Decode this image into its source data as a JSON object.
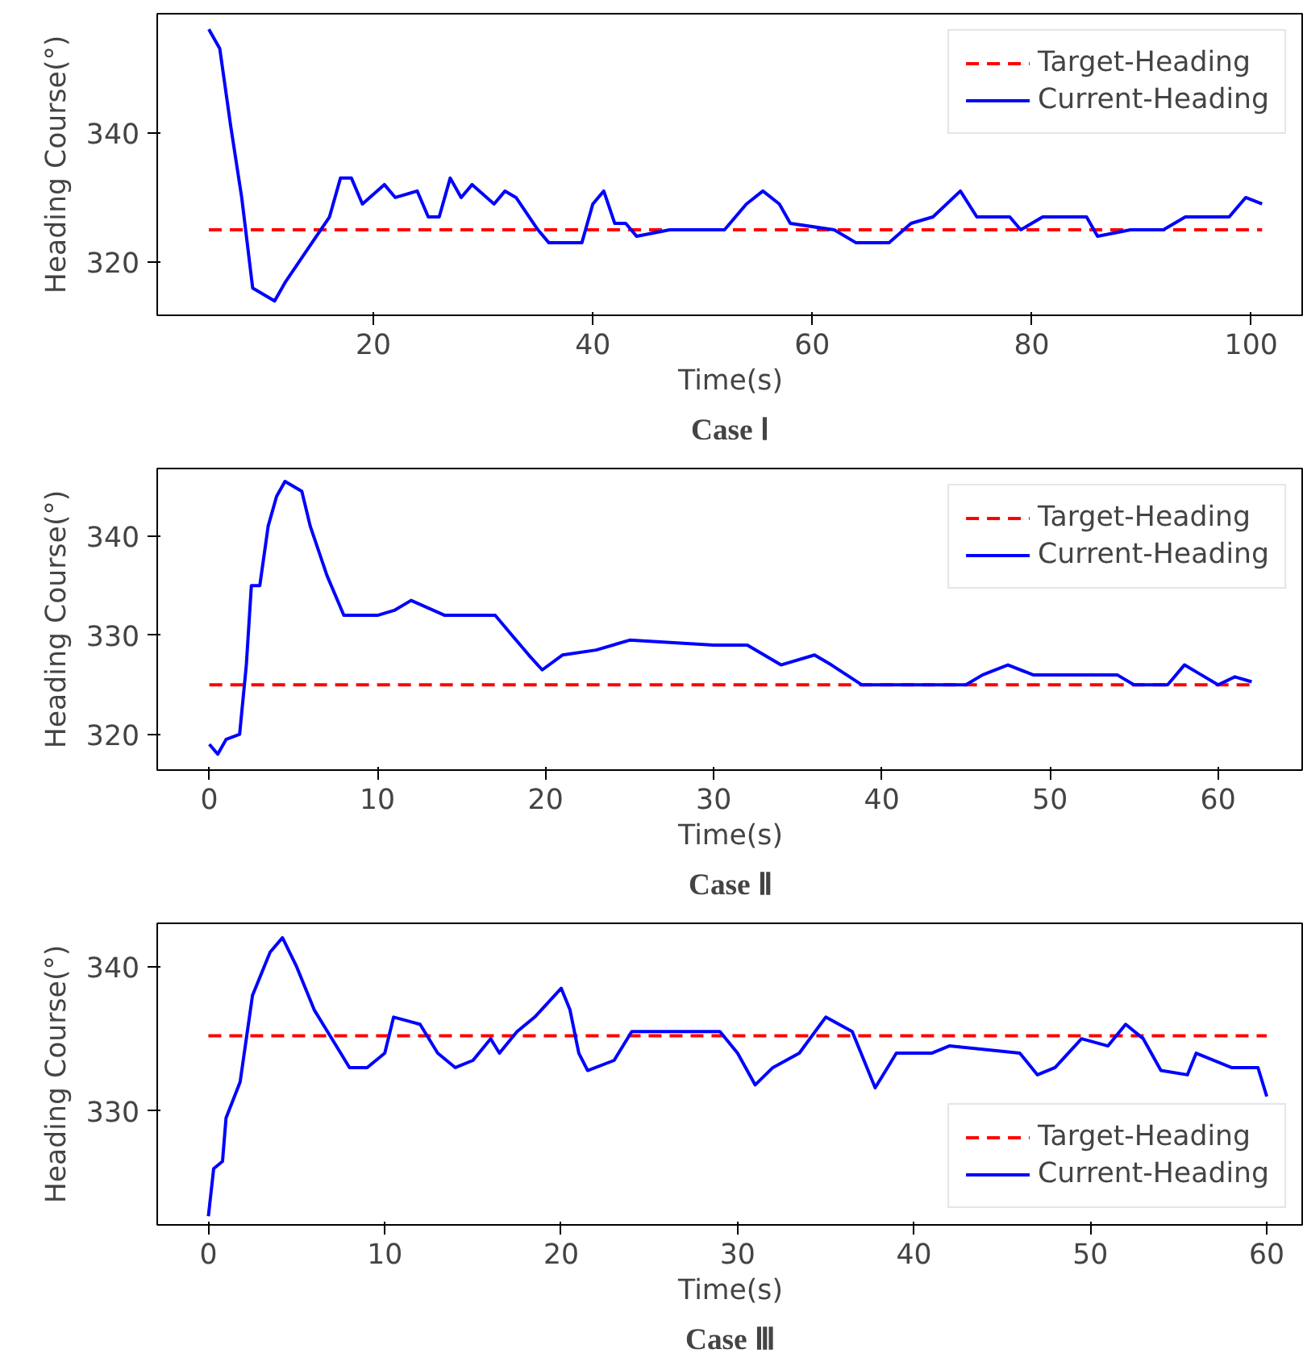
{
  "chart_data": [
    {
      "type": "line",
      "xlabel": "Time(s)",
      "ylabel": "Heading Course(°)",
      "annotations": [
        "Case Ⅰ"
      ],
      "xlim": [
        0.3,
        104.8
      ],
      "ylim": [
        311.8,
        358.4
      ],
      "xticks": [
        20,
        40,
        60,
        80,
        100
      ],
      "yticks": [
        320,
        340
      ],
      "legend": "top right",
      "grid": false,
      "series": [
        {
          "name": "Target-Heading",
          "color": "#ff0000",
          "line_style": "dashed",
          "x": [
            5,
            101
          ],
          "values": [
            325,
            325
          ]
        },
        {
          "name": "Current-Heading",
          "color": "#0000ff",
          "line_style": "solid",
          "x": [
            5,
            6,
            7,
            8,
            9,
            10,
            11,
            12,
            14,
            16,
            17,
            18,
            19,
            21,
            22,
            24,
            25,
            26,
            27,
            28,
            29,
            31,
            32,
            33,
            35,
            36,
            39,
            40,
            41,
            42,
            43,
            44,
            47,
            52,
            54,
            55.5,
            57,
            58,
            62,
            64,
            67,
            69,
            71,
            73.5,
            75,
            78,
            79,
            81,
            85,
            86,
            89,
            92,
            94,
            98,
            99.5,
            101
          ],
          "values": [
            356,
            353,
            341,
            330,
            316,
            315,
            314,
            317,
            322,
            327,
            333,
            333,
            329,
            332,
            330,
            331,
            327,
            327,
            333,
            330,
            332,
            329,
            331,
            330,
            325,
            323,
            323,
            329,
            331,
            326,
            326,
            324,
            325,
            325,
            329,
            331,
            329,
            326,
            325,
            323,
            323,
            326,
            327,
            331,
            327,
            327,
            325,
            327,
            327,
            324,
            325,
            325,
            327,
            327,
            330,
            329
          ]
        }
      ]
    },
    {
      "type": "line",
      "xlabel": "Time(s)",
      "ylabel": "Heading Course(°)",
      "annotations": [
        "Case Ⅱ"
      ],
      "xlim": [
        -3.1,
        65.1
      ],
      "ylim": [
        316.4,
        346.8
      ],
      "xticks": [
        0,
        10,
        20,
        30,
        40,
        50,
        60
      ],
      "yticks": [
        320,
        330,
        340
      ],
      "legend": "top right",
      "grid": false,
      "series": [
        {
          "name": "Target-Heading",
          "color": "#ff0000",
          "line_style": "dashed",
          "x": [
            0,
            62
          ],
          "values": [
            325,
            325
          ]
        },
        {
          "name": "Current-Heading",
          "color": "#0000ff",
          "line_style": "solid",
          "x": [
            0,
            0.5,
            1,
            1.8,
            2.2,
            2.5,
            3,
            3.5,
            4,
            4.5,
            5.5,
            6,
            7,
            8,
            10,
            11,
            12,
            14,
            17,
            18,
            19,
            19.8,
            21,
            23,
            25,
            30,
            32,
            34,
            36,
            37,
            38.8,
            45,
            46,
            47.5,
            49,
            54,
            55,
            57,
            58,
            59,
            60,
            61,
            62
          ],
          "values": [
            319,
            318,
            319.5,
            320,
            327,
            335,
            335,
            341,
            344,
            345.5,
            344.5,
            341,
            336,
            332,
            332,
            332.5,
            333.5,
            332,
            332,
            330,
            328,
            326.5,
            328,
            328.5,
            329.5,
            329,
            329,
            327,
            328,
            327,
            325,
            325,
            326,
            327,
            326,
            326,
            325,
            325,
            327,
            326,
            325,
            325.8,
            325.3
          ]
        }
      ]
    },
    {
      "type": "line",
      "xlabel": "Time(s)",
      "ylabel": "Heading Course(°)",
      "annotations": [
        "Case Ⅲ"
      ],
      "xlim": [
        -2.9,
        62.1
      ],
      "ylim": [
        322.1,
        343
      ],
      "xticks": [
        0,
        10,
        20,
        30,
        40,
        50,
        60
      ],
      "yticks": [
        330,
        340
      ],
      "legend": "bottom right",
      "grid": false,
      "series": [
        {
          "name": "Target-Heading",
          "color": "#ff0000",
          "line_style": "dashed",
          "x": [
            0,
            60
          ],
          "values": [
            335.2,
            335.2
          ]
        },
        {
          "name": "Current-Heading",
          "color": "#0000ff",
          "line_style": "solid",
          "x": [
            0,
            0.3,
            0.8,
            1,
            1.8,
            2.5,
            3.5,
            4.2,
            5,
            6,
            7.5,
            8,
            9,
            10,
            10.5,
            12,
            13,
            14,
            15,
            16,
            16.5,
            17.5,
            18.5,
            20,
            20.5,
            21,
            21.5,
            23,
            24,
            29,
            30,
            31,
            32,
            33.5,
            35,
            36.5,
            37.8,
            38.5,
            39,
            41,
            42,
            46,
            47,
            48,
            49.5,
            51,
            52,
            53,
            54,
            55.5,
            56,
            58,
            59.5,
            60
          ],
          "values": [
            322.7,
            326,
            326.5,
            329.5,
            332,
            338,
            341,
            342,
            340,
            337,
            334,
            333,
            333,
            334,
            336.5,
            336,
            334,
            333,
            333.5,
            335,
            334,
            335.5,
            336.5,
            338.5,
            337,
            334,
            332.8,
            333.5,
            335.5,
            335.5,
            334,
            331.8,
            333,
            334,
            336.5,
            335.5,
            331.6,
            333,
            334,
            334,
            334.5,
            334,
            332.5,
            333,
            335,
            334.5,
            336,
            335,
            332.8,
            332.5,
            334,
            333,
            333,
            331
          ]
        }
      ]
    }
  ]
}
